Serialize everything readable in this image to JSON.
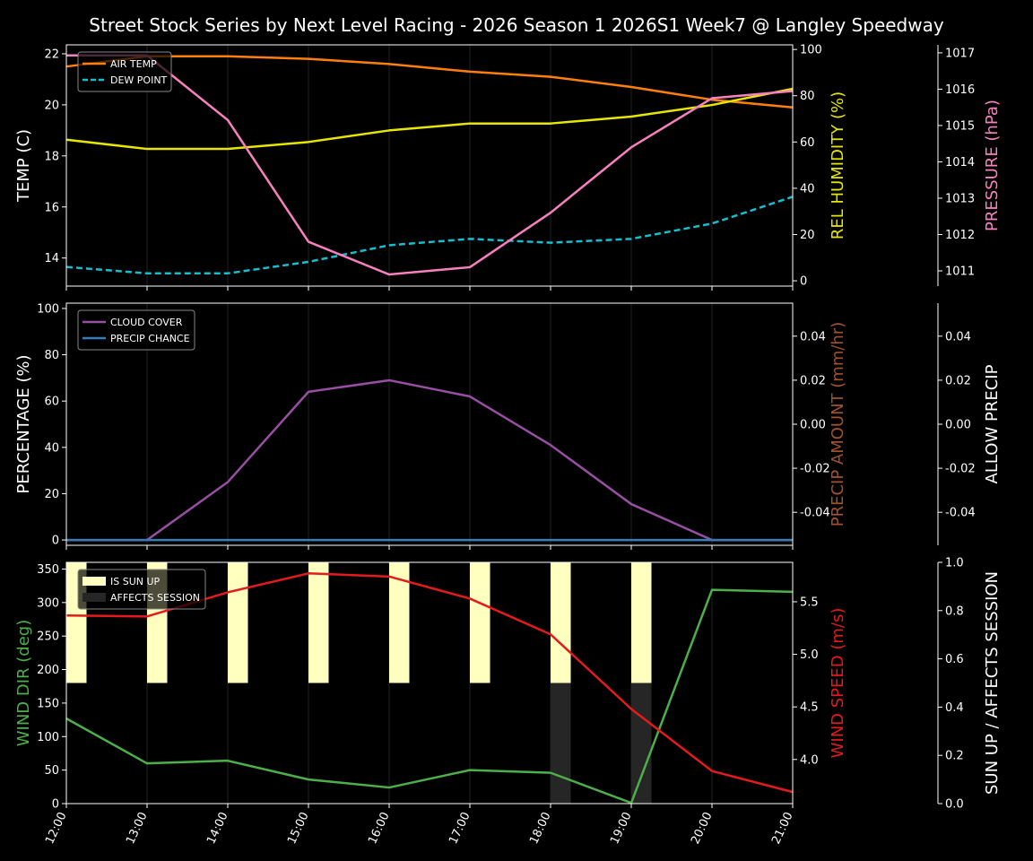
{
  "title": "Street Stock Series by Next Level Racing - 2026 Season 1 2026S1 Week7 @ Langley Speedway",
  "colors": {
    "background": "#000000",
    "air_temp": "#ff7f0e",
    "dew_point": "#17becf",
    "humidity": "#e6e600",
    "pressure": "#f781bf",
    "cloud": "#984ea3",
    "precip": "#377eb8",
    "wind_dir": "#4daf4a",
    "wind_speed": "#e41a1c",
    "sun_up": "#ffffc0",
    "affects_session": "#262626"
  },
  "chart_data": [
    {
      "type": "line",
      "x": [
        "12:00",
        "13:00",
        "14:00",
        "15:00",
        "16:00",
        "17:00",
        "18:00",
        "19:00",
        "20:00",
        "21:00"
      ],
      "grid": "vertical",
      "legend_placement": "upper-left",
      "axes": [
        {
          "side": "left",
          "label": "TEMP (C)",
          "ylim": [
            12.9,
            22.35
          ],
          "ticks": [
            14,
            16,
            18,
            20,
            22
          ]
        },
        {
          "side": "right",
          "label": "REL HUMIDITY (%)",
          "ylim": [
            -2.3,
            102
          ],
          "ticks": [
            0,
            20,
            40,
            60,
            80,
            100
          ]
        },
        {
          "side": "right-outer",
          "label": "PRESSURE (hPa)",
          "ylim": [
            1010.58,
            1017.22
          ],
          "ticks": [
            1011,
            1012,
            1013,
            1014,
            1015,
            1016,
            1017
          ]
        }
      ],
      "series": [
        {
          "name": "AIR TEMP",
          "axis": 0,
          "style": "solid",
          "color": "#ff7f0e",
          "values": [
            21.5,
            21.9,
            21.9,
            21.8,
            21.6,
            21.3,
            21.1,
            20.7,
            20.2,
            19.9
          ]
        },
        {
          "name": "DEW POINT",
          "axis": 0,
          "style": "dashed",
          "color": "#17becf",
          "values": [
            13.65,
            13.4,
            13.4,
            13.85,
            14.5,
            14.75,
            14.6,
            14.75,
            15.35,
            16.4
          ]
        },
        {
          "axis": 1,
          "style": "solid",
          "color": "#e6e600",
          "values": [
            61,
            57,
            57,
            60,
            65,
            68,
            68,
            71,
            76,
            83
          ]
        },
        {
          "axis": 2,
          "style": "solid",
          "color": "#f781bf",
          "values": [
            1016.93,
            1016.93,
            1015.15,
            1011.8,
            1010.9,
            1011.1,
            1012.6,
            1014.4,
            1015.75,
            1015.95
          ]
        }
      ]
    },
    {
      "type": "line",
      "x": [
        "12:00",
        "13:00",
        "14:00",
        "15:00",
        "16:00",
        "17:00",
        "18:00",
        "19:00",
        "20:00",
        "21:00"
      ],
      "grid": "vertical",
      "legend_placement": "upper-left",
      "axes": [
        {
          "side": "left",
          "label": "PERCENTAGE (%)",
          "ylim": [
            -2.3,
            102.3
          ],
          "ticks": [
            0,
            20,
            40,
            60,
            80,
            100
          ]
        },
        {
          "side": "right",
          "label": "PRECIP AMOUNT (mm/hr)",
          "ylim": [
            -0.055,
            0.055
          ],
          "ticks": [
            "-0.04",
            "-0.02",
            "0.00",
            "0.02",
            "0.04"
          ]
        },
        {
          "side": "right-outer",
          "label": "ALLOW PRECIP",
          "ylim": [
            -0.055,
            0.055
          ],
          "ticks": [
            "-0.04",
            "-0.02",
            "0.00",
            "0.02",
            "0.04"
          ]
        }
      ],
      "series": [
        {
          "name": "CLOUD COVER",
          "axis": 0,
          "style": "solid",
          "color": "#984ea3",
          "values": [
            0,
            0,
            25,
            64,
            69,
            62,
            41,
            15.5,
            0,
            0
          ]
        },
        {
          "name": "PRECIP CHANCE",
          "axis": 0,
          "style": "solid",
          "color": "#377eb8",
          "values": [
            0,
            0,
            0,
            0,
            0,
            0,
            0,
            0,
            0,
            0
          ]
        }
      ]
    },
    {
      "type": "line",
      "x": [
        "12:00",
        "13:00",
        "14:00",
        "15:00",
        "16:00",
        "17:00",
        "18:00",
        "19:00",
        "20:00",
        "21:00"
      ],
      "grid": "vertical",
      "legend_placement": "upper-left",
      "axes": [
        {
          "side": "left",
          "label": "WIND DIR (deg)",
          "ylim": [
            0,
            360
          ],
          "ticks": [
            0,
            50,
            100,
            150,
            200,
            250,
            300,
            350
          ]
        },
        {
          "side": "right",
          "label": "WIND SPEED (m/s)",
          "ylim": [
            3.58,
            5.875
          ],
          "ticks": [
            "4.0",
            "4.5",
            "5.0",
            "5.5"
          ]
        },
        {
          "side": "right-outer",
          "label": "SUN UP / AFFECTS SESSION",
          "ylim": [
            0,
            1.0
          ],
          "ticks": [
            "0.0",
            "0.2",
            "0.4",
            "0.6",
            "0.8",
            "1.0"
          ]
        }
      ],
      "series": [
        {
          "axis": 0,
          "style": "solid",
          "color": "#4daf4a",
          "values": [
            127,
            60,
            64,
            36,
            24,
            50,
            46,
            1,
            319,
            316
          ]
        },
        {
          "axis": 1,
          "style": "solid",
          "color": "#e41a1c",
          "values": [
            5.37,
            5.36,
            5.59,
            5.77,
            5.74,
            5.53,
            5.19,
            4.48,
            3.89,
            3.69
          ]
        }
      ],
      "bars": [
        {
          "name": "IS SUN UP",
          "axis": 2,
          "color": "#ffffc0",
          "range": [
            0.5,
            1.0
          ],
          "values": [
            1,
            1,
            1,
            1,
            1,
            1,
            1,
            1,
            0,
            0
          ]
        },
        {
          "name": "AFFECTS SESSION",
          "axis": 2,
          "color": "#262626",
          "range": [
            0,
            0.5
          ],
          "values": [
            0,
            0,
            0,
            0,
            0,
            0,
            1,
            1,
            0,
            0
          ]
        }
      ]
    }
  ]
}
